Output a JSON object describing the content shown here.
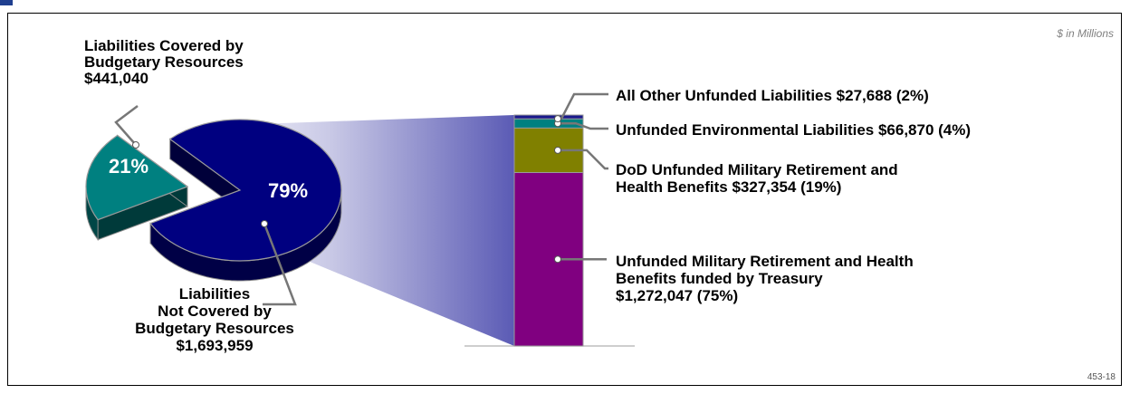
{
  "units_note": "$ in Millions",
  "figure_code": "453-18",
  "chart_data": [
    {
      "type": "pie",
      "slices": [
        {
          "label_lines": [
            "Liabilities Covered by",
            "Budgetary Resources",
            "$441,040"
          ],
          "value": 441040,
          "percent_label": "21%",
          "color": "#008080"
        },
        {
          "label_lines": [
            "Liabilities",
            "Not Covered by",
            "Budgetary Resources",
            "$1,693,959"
          ],
          "value": 1693959,
          "percent_label": "79%",
          "color": "#000080"
        }
      ]
    },
    {
      "type": "bar",
      "stacked": true,
      "breakdown_of": "Liabilities Not Covered by Budgetary Resources",
      "segments": [
        {
          "label_lines": [
            "Unfunded Military Retirement and Health",
            "Benefits funded by Treasury",
            "$1,272,047 (75%)"
          ],
          "value": 1272047,
          "percent": 75,
          "color": "#800080"
        },
        {
          "label_lines": [
            "DoD Unfunded Military Retirement and",
            "Health Benefits $327,354 (19%)"
          ],
          "value": 327354,
          "percent": 19,
          "color": "#808000"
        },
        {
          "label_lines": [
            "Unfunded Environmental Liabilities $66,870 (4%)"
          ],
          "value": 66870,
          "percent": 4,
          "color": "#008080"
        },
        {
          "label_lines": [
            "All Other Unfunded Liabilities $27,688 (2%)"
          ],
          "value": 27688,
          "percent": 2,
          "color": "#1a1a8c"
        }
      ]
    }
  ]
}
